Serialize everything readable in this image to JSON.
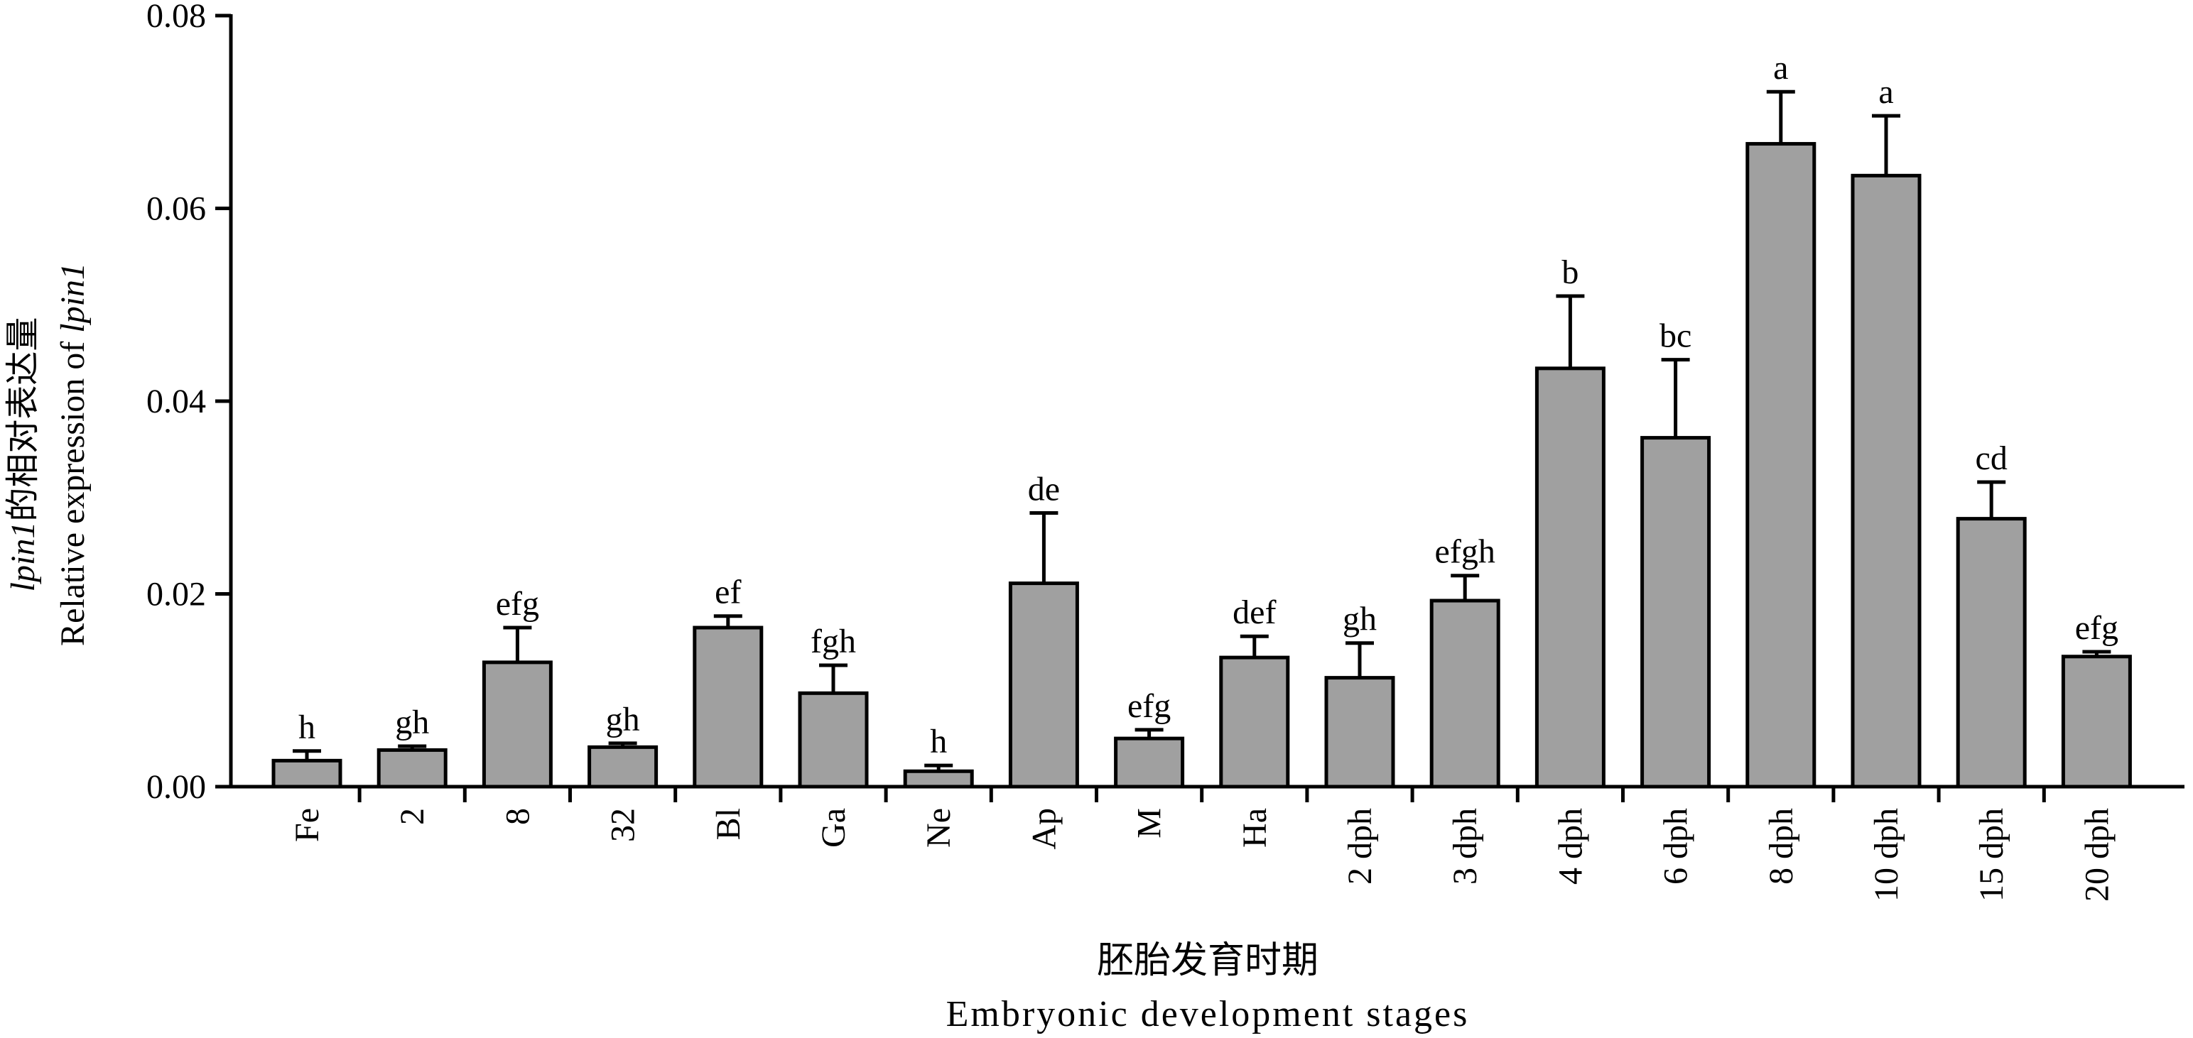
{
  "chart_data": {
    "type": "bar",
    "categories": [
      "Fe",
      "2",
      "8",
      "32",
      "Bl",
      "Ga",
      "Ne",
      "Ap",
      "M",
      "Ha",
      "2 dph",
      "3 dph",
      "4 dph",
      "6 dph",
      "8 dph",
      "10 dph",
      "15 dph",
      "20 dph"
    ],
    "values": [
      0.0027,
      0.0038,
      0.0129,
      0.0041,
      0.0165,
      0.0097,
      0.0016,
      0.0211,
      0.005,
      0.0134,
      0.0113,
      0.0193,
      0.0434,
      0.0362,
      0.0667,
      0.0634,
      0.0278,
      0.0135
    ],
    "errors": [
      0.001,
      0.0004,
      0.0036,
      0.0004,
      0.0012,
      0.0029,
      0.0006,
      0.0073,
      0.0009,
      0.0022,
      0.0036,
      0.0026,
      0.0075,
      0.0081,
      0.0054,
      0.0062,
      0.0038,
      0.0005
    ],
    "significance_labels": [
      "h",
      "gh",
      "efg",
      "gh",
      "ef",
      "fgh",
      "h",
      "de",
      "efg",
      "def",
      "gh",
      "efgh",
      "b",
      "bc",
      "a",
      "a",
      "cd",
      "efg"
    ],
    "ylim": [
      0,
      0.08
    ],
    "yticks": [
      "0.00",
      "0.02",
      "0.04",
      "0.06",
      "0.08"
    ],
    "ylabel": {
      "gene_italic": "lpin1",
      "line1_rest": "的相对表达量",
      "line2_prefix": "Relative expression of ",
      "line2_gene_italic": "lpin1"
    },
    "xlabel": {
      "line1": "胚胎发育时期",
      "line2": "Embryonic development stages"
    },
    "colors": {
      "bar": "#a0a0a0",
      "stroke": "#000000"
    },
    "grid": false,
    "legend": "none"
  }
}
